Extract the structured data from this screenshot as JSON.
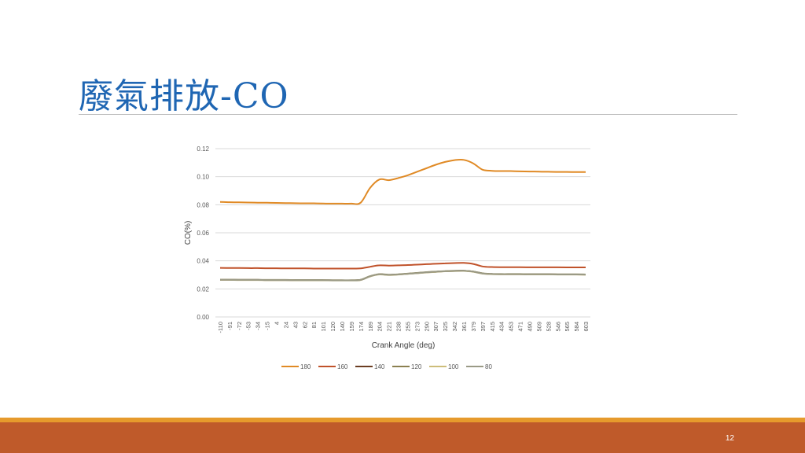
{
  "slide": {
    "title": "廢氣排放-CO",
    "page_number": "12"
  },
  "colors": {
    "title": "#1f66b3",
    "footer_orange": "#e69a2c",
    "footer_rust": "#bf5a2a"
  },
  "chart_data": {
    "type": "line",
    "xlabel": "Crank Angle (deg)",
    "ylabel": "CO(%)",
    "ylim": [
      0,
      0.12
    ],
    "yticks": [
      "0.00",
      "0.02",
      "0.04",
      "0.06",
      "0.08",
      "0.10",
      "0.12"
    ],
    "x": [
      "-110",
      "-91",
      "-72",
      "-53",
      "-34",
      "-15",
      "4",
      "24",
      "43",
      "62",
      "81",
      "101",
      "120",
      "140",
      "159",
      "174",
      "189",
      "204",
      "221",
      "238",
      "255",
      "273",
      "290",
      "307",
      "325",
      "342",
      "361",
      "379",
      "397",
      "415",
      "434",
      "453",
      "471",
      "490",
      "509",
      "528",
      "546",
      "565",
      "584",
      "603"
    ],
    "grid": true,
    "legend_position": "bottom",
    "series": [
      {
        "name": "180",
        "color": "#e08a25",
        "values": [
          0.082,
          0.0818,
          0.0817,
          0.0816,
          0.0815,
          0.0814,
          0.0813,
          0.0812,
          0.0811,
          0.081,
          0.081,
          0.0809,
          0.0808,
          0.0808,
          0.0808,
          0.0815,
          0.092,
          0.098,
          0.0975,
          0.099,
          0.101,
          0.1035,
          0.106,
          0.1085,
          0.1105,
          0.1118,
          0.112,
          0.1095,
          0.105,
          0.1042,
          0.104,
          0.104,
          0.1038,
          0.1037,
          0.1036,
          0.1035,
          0.1034,
          0.1034,
          0.1033,
          0.1033
        ]
      },
      {
        "name": "160",
        "color": "#c0522a",
        "values": [
          0.035,
          0.0349,
          0.0349,
          0.0348,
          0.0348,
          0.0347,
          0.0347,
          0.0346,
          0.0346,
          0.0346,
          0.0345,
          0.0345,
          0.0345,
          0.0345,
          0.0345,
          0.0346,
          0.0358,
          0.0368,
          0.0366,
          0.0368,
          0.037,
          0.0373,
          0.0376,
          0.0379,
          0.0382,
          0.0384,
          0.0385,
          0.0378,
          0.036,
          0.0356,
          0.0355,
          0.0355,
          0.0355,
          0.0354,
          0.0354,
          0.0354,
          0.0354,
          0.0353,
          0.0353,
          0.0353
        ]
      },
      {
        "name": "140",
        "color": "#6b3d22",
        "values": [
          0.0265,
          0.0265,
          0.0264,
          0.0264,
          0.0264,
          0.0263,
          0.0263,
          0.0263,
          0.0262,
          0.0262,
          0.0262,
          0.0262,
          0.0261,
          0.0261,
          0.0261,
          0.0264,
          0.029,
          0.0304,
          0.03,
          0.0303,
          0.0308,
          0.0313,
          0.0318,
          0.0322,
          0.0326,
          0.0328,
          0.0329,
          0.0323,
          0.031,
          0.0306,
          0.0305,
          0.0305,
          0.0305,
          0.0304,
          0.0304,
          0.0304,
          0.0303,
          0.0303,
          0.0303,
          0.0302
        ]
      },
      {
        "name": "120",
        "color": "#8b8050",
        "values": [
          0.0266,
          0.0266,
          0.0265,
          0.0265,
          0.0265,
          0.0264,
          0.0264,
          0.0264,
          0.0263,
          0.0263,
          0.0263,
          0.0263,
          0.0262,
          0.0262,
          0.0262,
          0.0265,
          0.0291,
          0.0305,
          0.0301,
          0.0304,
          0.0309,
          0.0314,
          0.0319,
          0.0323,
          0.0327,
          0.0329,
          0.033,
          0.0324,
          0.0311,
          0.0307,
          0.0306,
          0.0306,
          0.0306,
          0.0305,
          0.0305,
          0.0305,
          0.0304,
          0.0304,
          0.0304,
          0.0303
        ]
      },
      {
        "name": "100",
        "color": "#cdbd7a",
        "values": [
          0.0264,
          0.0264,
          0.0263,
          0.0263,
          0.0263,
          0.0262,
          0.0262,
          0.0262,
          0.0261,
          0.0261,
          0.0261,
          0.0261,
          0.026,
          0.026,
          0.026,
          0.0263,
          0.0289,
          0.0303,
          0.0299,
          0.0302,
          0.0307,
          0.0312,
          0.0317,
          0.0321,
          0.0325,
          0.0327,
          0.0328,
          0.0322,
          0.0309,
          0.0305,
          0.0304,
          0.0304,
          0.0304,
          0.0303,
          0.0303,
          0.0303,
          0.0302,
          0.0302,
          0.0302,
          0.0301
        ]
      },
      {
        "name": "80",
        "color": "#9a9a86",
        "values": [
          0.0265,
          0.0265,
          0.0264,
          0.0264,
          0.0264,
          0.0263,
          0.0263,
          0.0263,
          0.0262,
          0.0262,
          0.0262,
          0.0262,
          0.0261,
          0.0261,
          0.0261,
          0.0264,
          0.029,
          0.0304,
          0.03,
          0.0303,
          0.0308,
          0.0313,
          0.0318,
          0.0322,
          0.0326,
          0.0328,
          0.0329,
          0.0323,
          0.031,
          0.0306,
          0.0305,
          0.0305,
          0.0305,
          0.0304,
          0.0304,
          0.0304,
          0.0303,
          0.0303,
          0.0303,
          0.0302
        ]
      }
    ]
  }
}
